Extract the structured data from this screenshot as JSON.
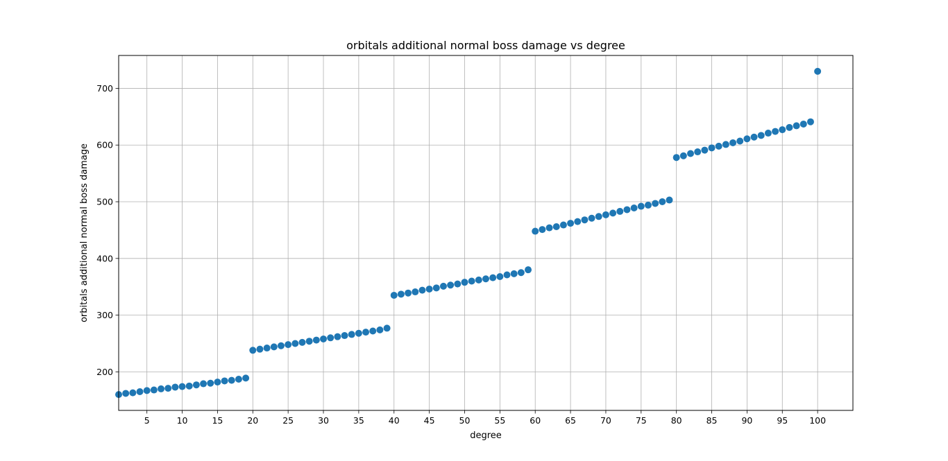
{
  "chart_data": {
    "type": "scatter",
    "title": "orbitals additional normal boss damage vs degree",
    "xlabel": "degree",
    "ylabel": "orbitals additional normal boss damage",
    "xlim": [
      1,
      105
    ],
    "ylim": [
      132,
      758
    ],
    "x_ticks": [
      5,
      10,
      15,
      20,
      25,
      30,
      35,
      40,
      45,
      50,
      55,
      60,
      65,
      70,
      75,
      80,
      85,
      90,
      95,
      100
    ],
    "y_ticks": [
      200,
      300,
      400,
      500,
      600,
      700
    ],
    "grid": true,
    "marker_color": "#1f77b4",
    "series": [
      {
        "x": [
          1,
          2,
          3,
          4,
          5,
          6,
          7,
          8,
          9,
          10,
          11,
          12,
          13,
          14,
          15,
          16,
          17,
          18,
          19,
          20,
          21,
          22,
          23,
          24,
          25,
          26,
          27,
          28,
          29,
          30,
          31,
          32,
          33,
          34,
          35,
          36,
          37,
          38,
          39,
          40,
          41,
          42,
          43,
          44,
          45,
          46,
          47,
          48,
          49,
          50,
          51,
          52,
          53,
          54,
          55,
          56,
          57,
          58,
          59,
          60,
          61,
          62,
          63,
          64,
          65,
          66,
          67,
          68,
          69,
          70,
          71,
          72,
          73,
          74,
          75,
          76,
          77,
          78,
          79,
          80,
          81,
          82,
          83,
          84,
          85,
          86,
          87,
          88,
          89,
          90,
          91,
          92,
          93,
          94,
          95,
          96,
          97,
          98,
          99,
          100
        ],
        "y": [
          160,
          162,
          163,
          165,
          167,
          168,
          170,
          171,
          173,
          174,
          175,
          177,
          179,
          180,
          182,
          184,
          185,
          187,
          189,
          238,
          240,
          242,
          244,
          246,
          248,
          250,
          252,
          254,
          256,
          258,
          260,
          262,
          264,
          266,
          268,
          270,
          272,
          274,
          277,
          335,
          337,
          339,
          341,
          344,
          346,
          348,
          351,
          353,
          355,
          358,
          360,
          362,
          364,
          366,
          368,
          371,
          373,
          375,
          380,
          448,
          451,
          454,
          456,
          459,
          462,
          465,
          468,
          471,
          474,
          477,
          480,
          483,
          486,
          489,
          492,
          494,
          497,
          500,
          503,
          578,
          581,
          585,
          588,
          591,
          595,
          598,
          601,
          604,
          607,
          611,
          614,
          617,
          621,
          624,
          627,
          631,
          634,
          637,
          641,
          730
        ]
      }
    ]
  }
}
